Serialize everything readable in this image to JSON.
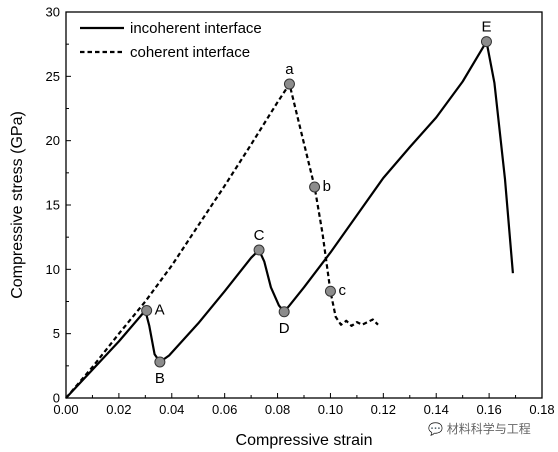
{
  "chart_data": {
    "type": "line",
    "title": "",
    "xlabel": "Compressive strain",
    "ylabel": "Compressive stress (GPa)",
    "xlim": [
      0.0,
      0.18
    ],
    "ylim": [
      0,
      30
    ],
    "xticks": [
      "0.00",
      "0.02",
      "0.04",
      "0.06",
      "0.08",
      "0.10",
      "0.12",
      "0.14",
      "0.16",
      "0.18"
    ],
    "yticks": [
      "0",
      "5",
      "10",
      "15",
      "20",
      "25",
      "30"
    ],
    "grid": false,
    "legend_position": "top-left",
    "series": [
      {
        "name": "incoherent interface",
        "style": "solid",
        "color": "#000000",
        "points": [
          [
            0.0,
            0.0
          ],
          [
            0.01,
            2.2
          ],
          [
            0.02,
            4.4
          ],
          [
            0.03,
            6.8
          ],
          [
            0.0315,
            5.6
          ],
          [
            0.0335,
            3.4
          ],
          [
            0.0355,
            2.8
          ],
          [
            0.039,
            3.3
          ],
          [
            0.05,
            5.8
          ],
          [
            0.06,
            8.3
          ],
          [
            0.07,
            10.9
          ],
          [
            0.073,
            11.5
          ],
          [
            0.075,
            10.6
          ],
          [
            0.0775,
            8.6
          ],
          [
            0.0805,
            7.2
          ],
          [
            0.0825,
            6.7
          ],
          [
            0.0845,
            7.2
          ],
          [
            0.09,
            8.6
          ],
          [
            0.1,
            11.3
          ],
          [
            0.11,
            14.2
          ],
          [
            0.12,
            17.1
          ],
          [
            0.13,
            19.5
          ],
          [
            0.14,
            21.8
          ],
          [
            0.15,
            24.6
          ],
          [
            0.159,
            27.7
          ],
          [
            0.162,
            24.5
          ],
          [
            0.166,
            17.0
          ],
          [
            0.169,
            9.7
          ]
        ]
      },
      {
        "name": "coherent interface",
        "style": "dashed",
        "color": "#000000",
        "points": [
          [
            0.0,
            0.0
          ],
          [
            0.01,
            2.4
          ],
          [
            0.02,
            5.0
          ],
          [
            0.03,
            7.5
          ],
          [
            0.04,
            10.3
          ],
          [
            0.05,
            13.4
          ],
          [
            0.06,
            16.5
          ],
          [
            0.07,
            19.7
          ],
          [
            0.08,
            23.0
          ],
          [
            0.0845,
            24.4
          ],
          [
            0.089,
            20.6
          ],
          [
            0.094,
            16.4
          ],
          [
            0.097,
            12.8
          ],
          [
            0.1,
            8.3
          ],
          [
            0.102,
            6.3
          ],
          [
            0.104,
            5.7
          ],
          [
            0.106,
            6.0
          ],
          [
            0.108,
            5.6
          ],
          [
            0.11,
            5.9
          ],
          [
            0.112,
            5.7
          ],
          [
            0.114,
            5.9
          ],
          [
            0.116,
            6.1
          ],
          [
            0.118,
            5.7
          ]
        ]
      }
    ],
    "annotations": [
      {
        "label": "A",
        "x": 0.0305,
        "y": 6.8,
        "anchor": "right"
      },
      {
        "label": "B",
        "x": 0.0355,
        "y": 2.8,
        "anchor": "below"
      },
      {
        "label": "C",
        "x": 0.073,
        "y": 11.5,
        "anchor": "above"
      },
      {
        "label": "D",
        "x": 0.0825,
        "y": 6.7,
        "anchor": "below"
      },
      {
        "label": "E",
        "x": 0.159,
        "y": 27.7,
        "anchor": "above"
      },
      {
        "label": "a",
        "x": 0.0845,
        "y": 24.4,
        "anchor": "above"
      },
      {
        "label": "b",
        "x": 0.094,
        "y": 16.4,
        "anchor": "right"
      },
      {
        "label": "c",
        "x": 0.1,
        "y": 8.3,
        "anchor": "right"
      }
    ],
    "marker_color": "#8c8c8c"
  },
  "watermark": "材料科学与工程",
  "icons": {
    "watermark": "wechat-icon"
  }
}
